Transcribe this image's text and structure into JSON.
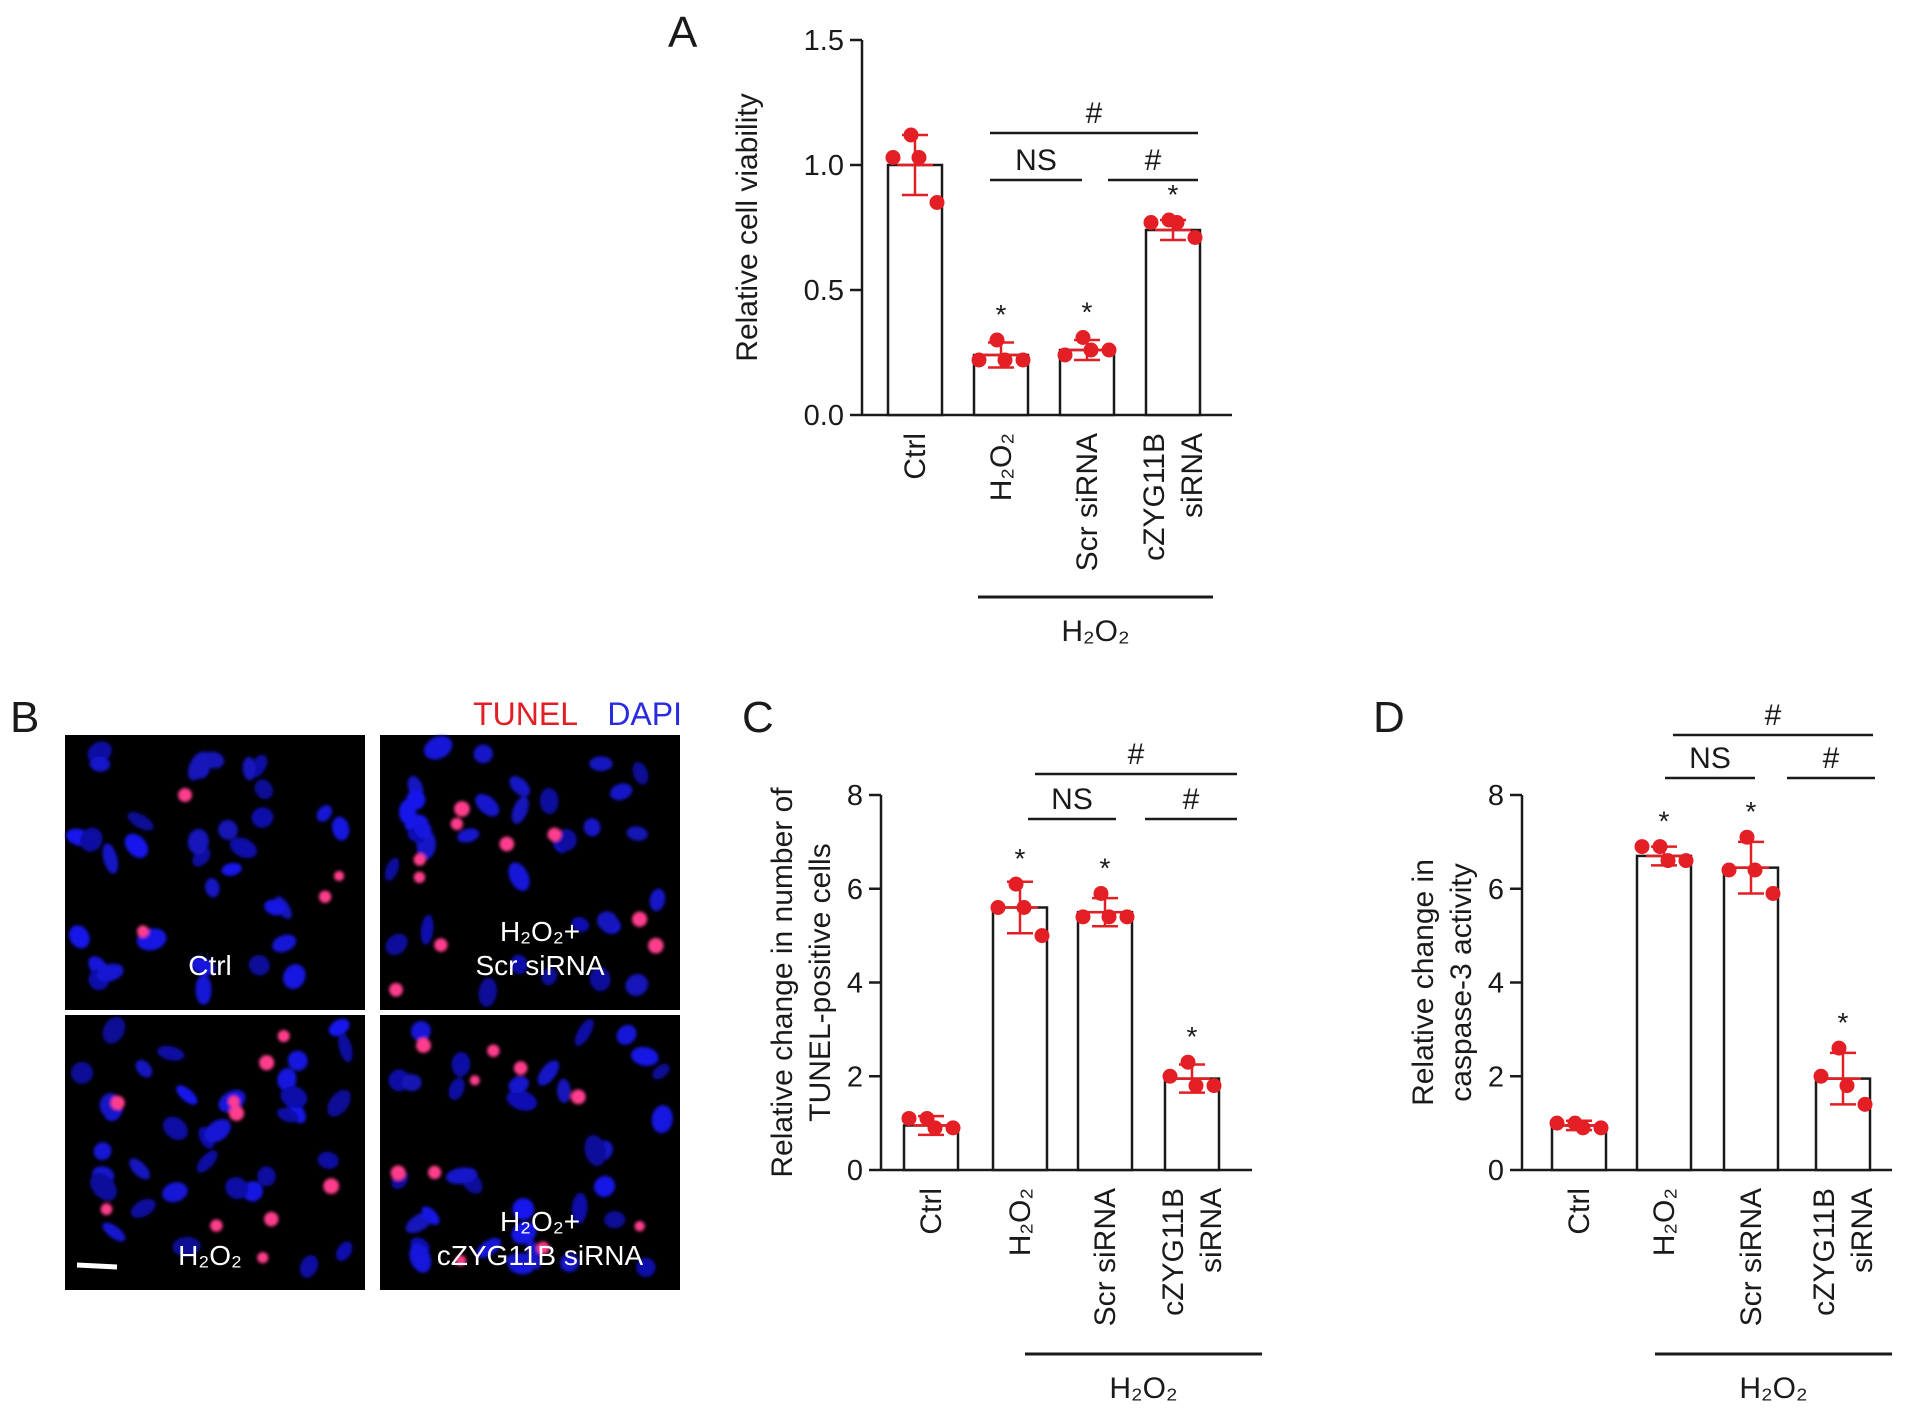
{
  "colors": {
    "dot": "#e31e24",
    "bar_edge": "#1a1a1a",
    "tunel": "#e31e24",
    "dapi": "#2a2ae0"
  },
  "panelA": {
    "letter": "A",
    "ylabel": "Relative cell viability",
    "ylim": [
      0,
      1.5
    ],
    "yticks": [
      "0.0",
      "0.5",
      "1.0",
      "1.5"
    ],
    "categories": [
      {
        "lines": [
          "Ctrl"
        ]
      },
      {
        "lines": [
          "H₂O₂"
        ]
      },
      {
        "lines": [
          "Scr siRNA"
        ]
      },
      {
        "lines": [
          "cZYG11B",
          "siRNA"
        ]
      }
    ],
    "group_label": "H₂O₂",
    "sig": {
      "star": "*",
      "ns": "NS",
      "hash": "#"
    }
  },
  "panelB": {
    "letter": "B",
    "legend_tunel": "TUNEL",
    "legend_dapi": "DAPI",
    "images": [
      {
        "lines": [
          "Ctrl"
        ]
      },
      {
        "lines": [
          "H₂O₂+",
          "Scr siRNA"
        ]
      },
      {
        "lines": [
          "H₂O₂"
        ]
      },
      {
        "lines": [
          "H₂O₂+",
          "cZYG11B siRNA"
        ]
      }
    ]
  },
  "panelC": {
    "letter": "C",
    "ylabel_lines": [
      "Relative change in number of",
      "TUNEL-positive cells"
    ],
    "ylim": [
      0,
      8
    ],
    "yticks": [
      "0",
      "2",
      "4",
      "6",
      "8"
    ],
    "categories": [
      {
        "lines": [
          "Ctrl"
        ]
      },
      {
        "lines": [
          "H₂O₂"
        ]
      },
      {
        "lines": [
          "Scr siRNA"
        ]
      },
      {
        "lines": [
          "cZYG11B",
          "siRNA"
        ]
      }
    ],
    "group_label": "H₂O₂"
  },
  "panelD": {
    "letter": "D",
    "ylabel_lines": [
      "Relative change in",
      "caspase-3 activity"
    ],
    "ylim": [
      0,
      8
    ],
    "yticks": [
      "0",
      "2",
      "4",
      "6",
      "8"
    ],
    "categories": [
      {
        "lines": [
          "Ctrl"
        ]
      },
      {
        "lines": [
          "H₂O₂"
        ]
      },
      {
        "lines": [
          "Scr siRNA"
        ]
      },
      {
        "lines": [
          "cZYG11B",
          "siRNA"
        ]
      }
    ],
    "group_label": "H₂O₂"
  },
  "chart_data": [
    {
      "panel": "A",
      "type": "bar",
      "categories": [
        "Ctrl",
        "H₂O₂",
        "H₂O₂ + Scr siRNA",
        "H₂O₂ + cZYG11B siRNA"
      ],
      "values": [
        1.0,
        0.24,
        0.26,
        0.74
      ],
      "errors": [
        0.12,
        0.05,
        0.04,
        0.04
      ],
      "points": [
        [
          1.12,
          1.03,
          1.03,
          0.85
        ],
        [
          0.3,
          0.22,
          0.22,
          0.22
        ],
        [
          0.31,
          0.24,
          0.26,
          0.26
        ],
        [
          0.78,
          0.77,
          0.77,
          0.71
        ]
      ],
      "ylabel": "Relative cell viability",
      "ylim": [
        0,
        1.5
      ],
      "significance": {
        "vs_ctrl": [
          "",
          "*",
          "*",
          "*"
        ],
        "H₂O₂ vs Scr siRNA": "NS",
        "Scr siRNA vs cZYG11B siRNA": "#",
        "H₂O₂ vs cZYG11B siRNA": "#"
      }
    },
    {
      "panel": "C",
      "type": "bar",
      "categories": [
        "Ctrl",
        "H₂O₂",
        "H₂O₂ + Scr siRNA",
        "H₂O₂ + cZYG11B siRNA"
      ],
      "values": [
        0.95,
        5.6,
        5.5,
        1.95
      ],
      "errors": [
        0.2,
        0.55,
        0.3,
        0.3
      ],
      "points": [
        [
          1.1,
          1.1,
          0.9,
          0.9
        ],
        [
          6.1,
          5.6,
          5.6,
          5.0
        ],
        [
          5.9,
          5.4,
          5.4,
          5.4
        ],
        [
          2.3,
          2.0,
          1.8,
          1.8
        ]
      ],
      "ylabel": "Relative change in number of TUNEL-positive cells",
      "ylim": [
        0,
        8
      ],
      "significance": {
        "vs_ctrl": [
          "",
          "*",
          "*",
          "*"
        ],
        "H₂O₂ vs Scr siRNA": "NS",
        "Scr siRNA vs cZYG11B siRNA": "#",
        "H₂O₂ vs cZYG11B siRNA": "#"
      }
    },
    {
      "panel": "D",
      "type": "bar",
      "categories": [
        "Ctrl",
        "H₂O₂",
        "H₂O₂ + Scr siRNA",
        "H₂O₂ + cZYG11B siRNA"
      ],
      "values": [
        0.95,
        6.7,
        6.45,
        1.95
      ],
      "errors": [
        0.1,
        0.2,
        0.55,
        0.55
      ],
      "points": [
        [
          1.0,
          1.0,
          0.9,
          0.9
        ],
        [
          6.9,
          6.9,
          6.6,
          6.6
        ],
        [
          7.1,
          6.4,
          6.4,
          5.9
        ],
        [
          2.6,
          2.0,
          1.8,
          1.4
        ]
      ],
      "ylabel": "Relative change in caspase-3 activity",
      "ylim": [
        0,
        8
      ],
      "significance": {
        "vs_ctrl": [
          "",
          "*",
          "*",
          "*"
        ],
        "H₂O₂ vs Scr siRNA": "NS",
        "Scr siRNA vs cZYG11B siRNA": "#",
        "H₂O₂ vs cZYG11B siRNA": "#"
      }
    }
  ]
}
